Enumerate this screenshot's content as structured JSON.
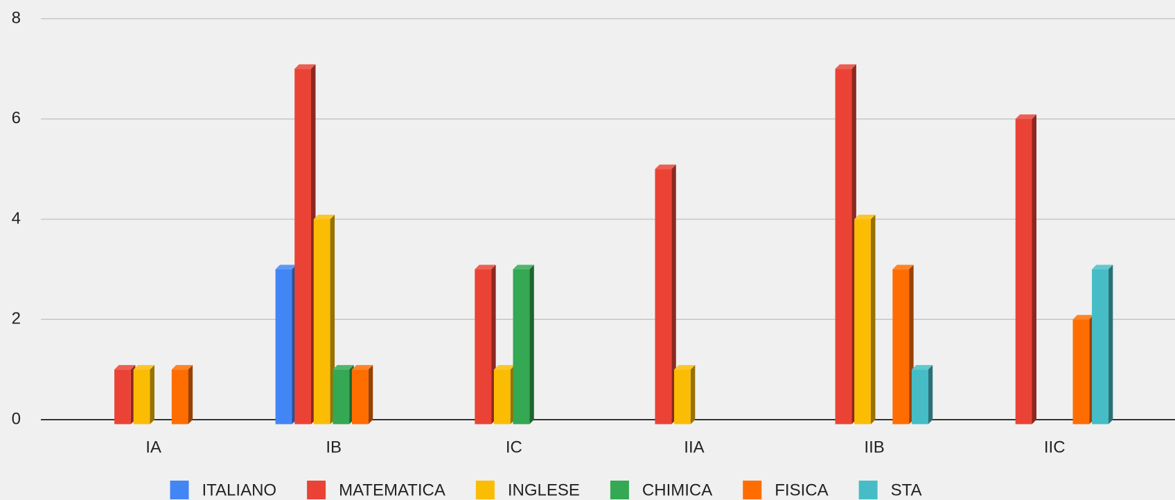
{
  "chart_data": {
    "type": "bar",
    "categories": [
      "IA",
      "IB",
      "IC",
      "IIA",
      "IIB",
      "IIC"
    ],
    "series": [
      {
        "name": "ITALIANO",
        "color": "#4285f4",
        "values": [
          0,
          3,
          0,
          0,
          0,
          0
        ]
      },
      {
        "name": "MATEMATICA",
        "color": "#ea4335",
        "values": [
          1,
          7,
          3,
          5,
          7,
          6
        ]
      },
      {
        "name": "INGLESE",
        "color": "#fbbc04",
        "values": [
          1,
          4,
          1,
          1,
          4,
          0
        ]
      },
      {
        "name": "CHIMICA",
        "color": "#34a853",
        "values": [
          0,
          1,
          3,
          0,
          0,
          0
        ]
      },
      {
        "name": "FISICA",
        "color": "#ff6d01",
        "values": [
          1,
          1,
          0,
          0,
          3,
          2
        ]
      },
      {
        "name": "STA",
        "color": "#46bdc6",
        "values": [
          0,
          0,
          0,
          0,
          1,
          3
        ]
      }
    ],
    "ylim": [
      0,
      8
    ],
    "yticks": [
      0,
      2,
      4,
      6,
      8
    ],
    "grid": true,
    "legend": "bottom"
  }
}
